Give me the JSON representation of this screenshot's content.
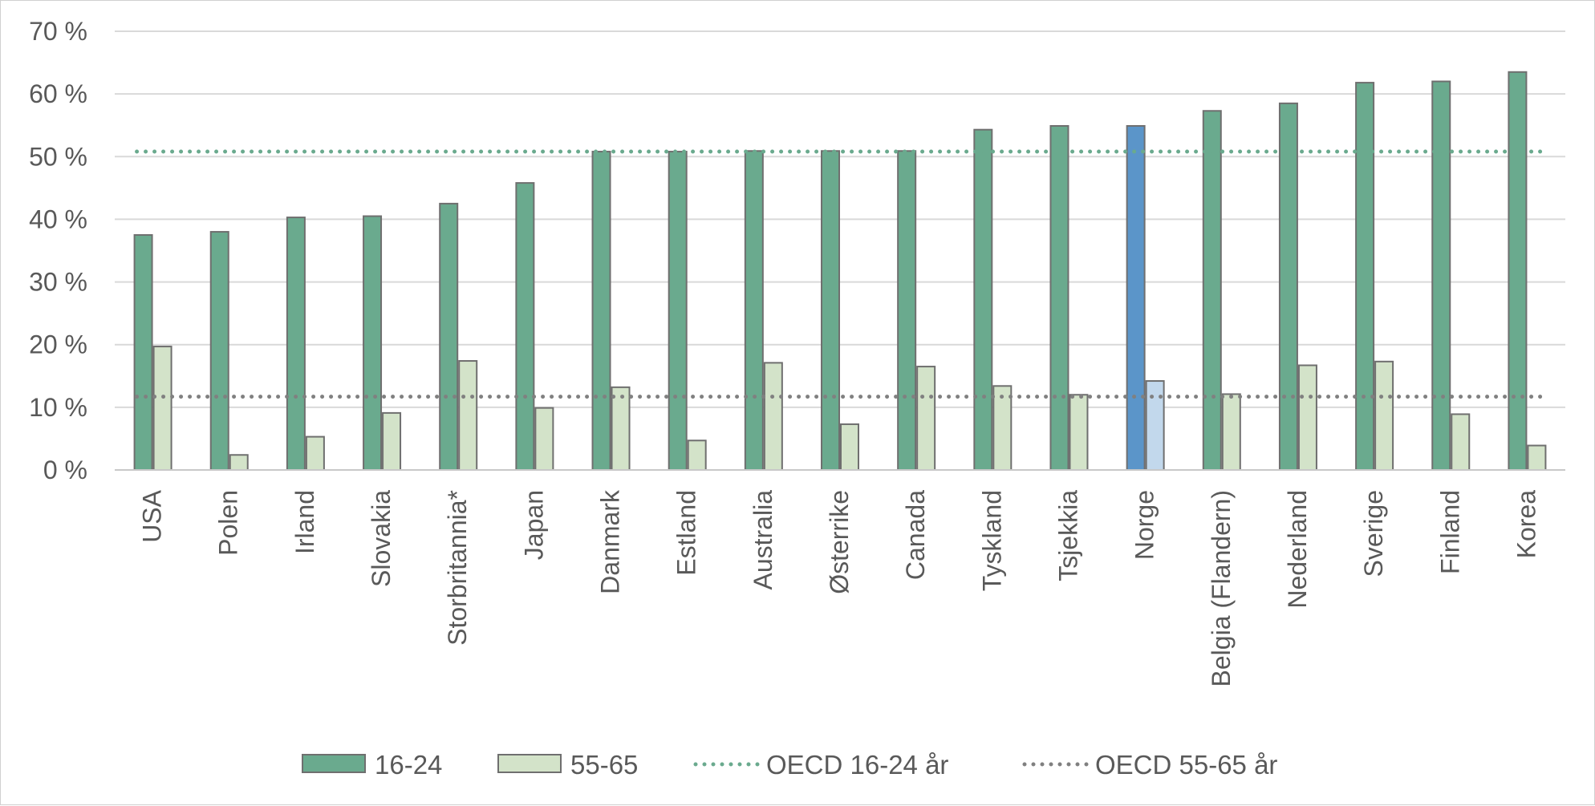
{
  "chart_data": {
    "type": "bar",
    "categories": [
      "USA",
      "Polen",
      "Irland",
      "Slovakia",
      "Storbritannia*",
      "Japan",
      "Danmark",
      "Estland",
      "Australia",
      "Østerrike",
      "Canada",
      "Tyskland",
      "Tsjekkia",
      "Norge",
      "Belgia (Flandern)",
      "Nederland",
      "Sverige",
      "Finland",
      "Korea"
    ],
    "series": [
      {
        "name": "16-24",
        "color": "#6aaa8e",
        "highlight_color": "#5b95c9",
        "values": [
          37.5,
          38.0,
          40.3,
          40.5,
          42.5,
          45.8,
          50.8,
          50.8,
          50.9,
          50.9,
          50.9,
          54.3,
          54.9,
          54.9,
          57.3,
          58.5,
          61.8,
          62.0,
          63.5
        ]
      },
      {
        "name": "55-65",
        "color": "#d3e3c9",
        "highlight_color": "#c2d8ec",
        "values": [
          19.7,
          2.4,
          5.3,
          9.1,
          17.4,
          9.9,
          13.2,
          4.7,
          17.1,
          7.3,
          16.5,
          13.4,
          12.0,
          14.2,
          12.1,
          16.7,
          17.3,
          8.9,
          3.9
        ]
      }
    ],
    "reference_lines": [
      {
        "name": "OECD 16-24 år",
        "value": 50.8,
        "color": "#6aaa8e",
        "style": "dotted"
      },
      {
        "name": "OECD 55-65 år",
        "value": 11.7,
        "color": "#808080",
        "style": "dotted"
      }
    ],
    "highlight_category": "Norge",
    "yticks": [
      "0 %",
      "10 %",
      "20 %",
      "30 %",
      "40 %",
      "50 %",
      "60 %",
      "70 %"
    ],
    "ylim": [
      0,
      70
    ],
    "grid": true,
    "legend_position": "bottom",
    "title": "",
    "xlabel": "",
    "ylabel": ""
  }
}
